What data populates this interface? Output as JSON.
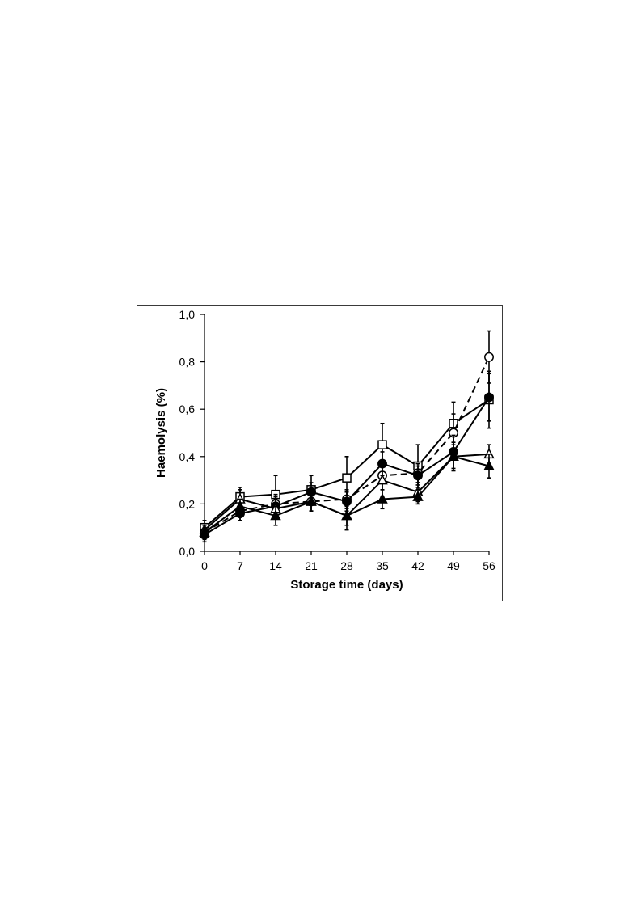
{
  "chart_data": {
    "type": "line",
    "title": "",
    "xlabel": "Storage time (days)",
    "ylabel": "Haemolysis (%)",
    "x": [
      0,
      7,
      14,
      21,
      28,
      35,
      42,
      49,
      56
    ],
    "x_tick_labels": [
      "0",
      "7",
      "14",
      "21",
      "28",
      "35",
      "42",
      "49",
      "56"
    ],
    "ylim": [
      0,
      1.0
    ],
    "y_ticks": [
      0,
      0.2,
      0.4,
      0.6,
      0.8,
      1.0
    ],
    "y_tick_labels": [
      "0,0",
      "0,2",
      "0,4",
      "0,6",
      "0,8",
      "1,0"
    ],
    "grid": false,
    "legend": "none",
    "series": [
      {
        "marker": "open-square",
        "line": "solid",
        "color": "#000000",
        "values": [
          0.1,
          0.23,
          0.24,
          0.26,
          0.31,
          0.45,
          0.36,
          0.54,
          0.64
        ],
        "errors": [
          0.03,
          0.04,
          0.08,
          0.06,
          0.09,
          0.09,
          0.09,
          0.09,
          0.12
        ]
      },
      {
        "marker": "open-circle",
        "line": "dashed",
        "color": "#000000",
        "values": [
          0.08,
          0.17,
          0.2,
          0.21,
          0.22,
          0.32,
          0.33,
          0.5,
          0.82
        ],
        "errors": [
          0.03,
          0.04,
          0.04,
          0.04,
          0.04,
          0.06,
          0.04,
          0.08,
          0.11
        ]
      },
      {
        "marker": "filled-circle",
        "line": "solid",
        "color": "#000000",
        "values": [
          0.07,
          0.16,
          0.19,
          0.25,
          0.21,
          0.37,
          0.32,
          0.42,
          0.65
        ],
        "errors": [
          0.03,
          0.03,
          0.04,
          0.04,
          0.04,
          0.05,
          0.04,
          0.07,
          0.1
        ]
      },
      {
        "marker": "open-triangle",
        "line": "solid",
        "color": "#000000",
        "values": [
          0.09,
          0.22,
          0.18,
          0.21,
          0.15,
          0.3,
          0.25,
          0.4,
          0.41
        ],
        "errors": [
          0.02,
          0.04,
          0.04,
          0.04,
          0.06,
          0.07,
          0.04,
          0.06,
          0.04
        ]
      },
      {
        "marker": "filled-triangle",
        "line": "solid",
        "color": "#000000",
        "values": [
          0.08,
          0.19,
          0.15,
          0.21,
          0.15,
          0.22,
          0.23,
          0.4,
          0.36
        ],
        "errors": [
          0.02,
          0.03,
          0.04,
          0.04,
          0.04,
          0.04,
          0.03,
          0.06,
          0.05
        ]
      }
    ]
  }
}
